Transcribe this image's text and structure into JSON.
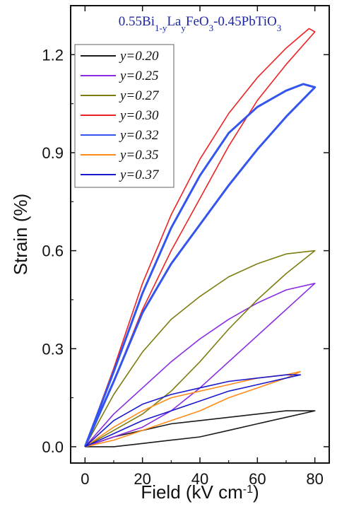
{
  "chart_data": {
    "type": "line",
    "title": {
      "parts": [
        {
          "text": "0.55Bi",
          "sub": false
        },
        {
          "text": "1-y",
          "sub": true
        },
        {
          "text": "La",
          "sub": false
        },
        {
          "text": "y",
          "sub": true
        },
        {
          "text": "FeO",
          "sub": false
        },
        {
          "text": "3",
          "sub": true
        },
        {
          "text": "-0.45PbTiO",
          "sub": false
        },
        {
          "text": "3",
          "sub": true
        }
      ]
    },
    "xlabel": {
      "main": "Field (kV cm",
      "sup": "-1",
      "end": ")"
    },
    "ylabel": "Strain (%)",
    "xlim": [
      -5,
      85
    ],
    "ylim": [
      -0.05,
      1.35
    ],
    "xticks": [
      {
        "value": 0,
        "label": "0"
      },
      {
        "value": 20,
        "label": "20"
      },
      {
        "value": 40,
        "label": "40"
      },
      {
        "value": 60,
        "label": "60"
      },
      {
        "value": 80,
        "label": "80"
      }
    ],
    "yticks": [
      {
        "value": 0.0,
        "label": "0.0"
      },
      {
        "value": 0.3,
        "label": "0.3"
      },
      {
        "value": 0.6,
        "label": "0.6"
      },
      {
        "value": 0.9,
        "label": "0.9"
      },
      {
        "value": 1.2,
        "label": "1.2"
      }
    ],
    "legend_position": "top-left",
    "series": [
      {
        "name": "y=0.20",
        "color": "#1a1a1a",
        "upper": [
          [
            0,
            0
          ],
          [
            10,
            0.03
          ],
          [
            20,
            0.05
          ],
          [
            30,
            0.07
          ],
          [
            40,
            0.08
          ],
          [
            50,
            0.09
          ],
          [
            60,
            0.1
          ],
          [
            70,
            0.11
          ],
          [
            80,
            0.11
          ]
        ],
        "lower": [
          [
            0,
            0
          ],
          [
            10,
            0
          ],
          [
            20,
            0.01
          ],
          [
            30,
            0.02
          ],
          [
            40,
            0.03
          ],
          [
            50,
            0.05
          ],
          [
            60,
            0.07
          ],
          [
            70,
            0.09
          ],
          [
            80,
            0.11
          ]
        ]
      },
      {
        "name": "y=0.25",
        "color": "#8a2be2",
        "upper": [
          [
            0,
            0
          ],
          [
            10,
            0.1
          ],
          [
            20,
            0.18
          ],
          [
            30,
            0.26
          ],
          [
            40,
            0.33
          ],
          [
            50,
            0.39
          ],
          [
            60,
            0.44
          ],
          [
            70,
            0.48
          ],
          [
            80,
            0.5
          ]
        ],
        "lower": [
          [
            0,
            0
          ],
          [
            10,
            0.03
          ],
          [
            20,
            0.06
          ],
          [
            30,
            0.11
          ],
          [
            40,
            0.18
          ],
          [
            50,
            0.26
          ],
          [
            60,
            0.34
          ],
          [
            70,
            0.42
          ],
          [
            80,
            0.5
          ]
        ]
      },
      {
        "name": "y=0.27",
        "color": "#7d7d10",
        "upper": [
          [
            0,
            0
          ],
          [
            10,
            0.16
          ],
          [
            20,
            0.29
          ],
          [
            30,
            0.39
          ],
          [
            40,
            0.46
          ],
          [
            50,
            0.52
          ],
          [
            60,
            0.56
          ],
          [
            70,
            0.59
          ],
          [
            80,
            0.6
          ]
        ],
        "lower": [
          [
            0,
            0
          ],
          [
            10,
            0.05
          ],
          [
            20,
            0.1
          ],
          [
            30,
            0.17
          ],
          [
            40,
            0.26
          ],
          [
            50,
            0.36
          ],
          [
            60,
            0.45
          ],
          [
            70,
            0.53
          ],
          [
            80,
            0.6
          ]
        ]
      },
      {
        "name": "y=0.30",
        "color": "#ee2222",
        "upper": [
          [
            0,
            0
          ],
          [
            10,
            0.24
          ],
          [
            20,
            0.5
          ],
          [
            30,
            0.71
          ],
          [
            40,
            0.88
          ],
          [
            50,
            1.02
          ],
          [
            60,
            1.13
          ],
          [
            70,
            1.22
          ],
          [
            78,
            1.28
          ],
          [
            80,
            1.27
          ]
        ],
        "lower": [
          [
            0,
            0
          ],
          [
            10,
            0.2
          ],
          [
            20,
            0.42
          ],
          [
            30,
            0.6
          ],
          [
            40,
            0.76
          ],
          [
            50,
            0.92
          ],
          [
            60,
            1.06
          ],
          [
            70,
            1.17
          ],
          [
            80,
            1.27
          ]
        ]
      },
      {
        "name": "y=0.32",
        "color": "#3355ee",
        "upper": [
          [
            0,
            0
          ],
          [
            10,
            0.23
          ],
          [
            20,
            0.47
          ],
          [
            30,
            0.67
          ],
          [
            40,
            0.83
          ],
          [
            50,
            0.96
          ],
          [
            60,
            1.04
          ],
          [
            70,
            1.09
          ],
          [
            76,
            1.11
          ],
          [
            80,
            1.1
          ]
        ],
        "lower": [
          [
            0,
            0
          ],
          [
            10,
            0.2
          ],
          [
            20,
            0.41
          ],
          [
            30,
            0.56
          ],
          [
            40,
            0.68
          ],
          [
            50,
            0.8
          ],
          [
            60,
            0.91
          ],
          [
            70,
            1.01
          ],
          [
            80,
            1.1
          ]
        ]
      },
      {
        "name": "y=0.35",
        "color": "#ff8c1a",
        "upper": [
          [
            0,
            0
          ],
          [
            10,
            0.06
          ],
          [
            20,
            0.11
          ],
          [
            30,
            0.15
          ],
          [
            40,
            0.17
          ],
          [
            50,
            0.19
          ],
          [
            60,
            0.21
          ],
          [
            70,
            0.22
          ],
          [
            75,
            0.23
          ]
        ],
        "lower": [
          [
            0,
            0
          ],
          [
            10,
            0.02
          ],
          [
            20,
            0.05
          ],
          [
            30,
            0.08
          ],
          [
            40,
            0.11
          ],
          [
            50,
            0.15
          ],
          [
            60,
            0.18
          ],
          [
            70,
            0.21
          ],
          [
            75,
            0.23
          ]
        ]
      },
      {
        "name": "y=0.37",
        "color": "#1a1acc",
        "upper": [
          [
            0,
            0
          ],
          [
            10,
            0.08
          ],
          [
            20,
            0.13
          ],
          [
            30,
            0.16
          ],
          [
            40,
            0.18
          ],
          [
            50,
            0.2
          ],
          [
            60,
            0.21
          ],
          [
            70,
            0.22
          ],
          [
            75,
            0.22
          ]
        ],
        "lower": [
          [
            0,
            0
          ],
          [
            10,
            0.04
          ],
          [
            20,
            0.08
          ],
          [
            30,
            0.11
          ],
          [
            40,
            0.14
          ],
          [
            50,
            0.17
          ],
          [
            60,
            0.19
          ],
          [
            70,
            0.21
          ],
          [
            75,
            0.22
          ]
        ]
      }
    ]
  }
}
